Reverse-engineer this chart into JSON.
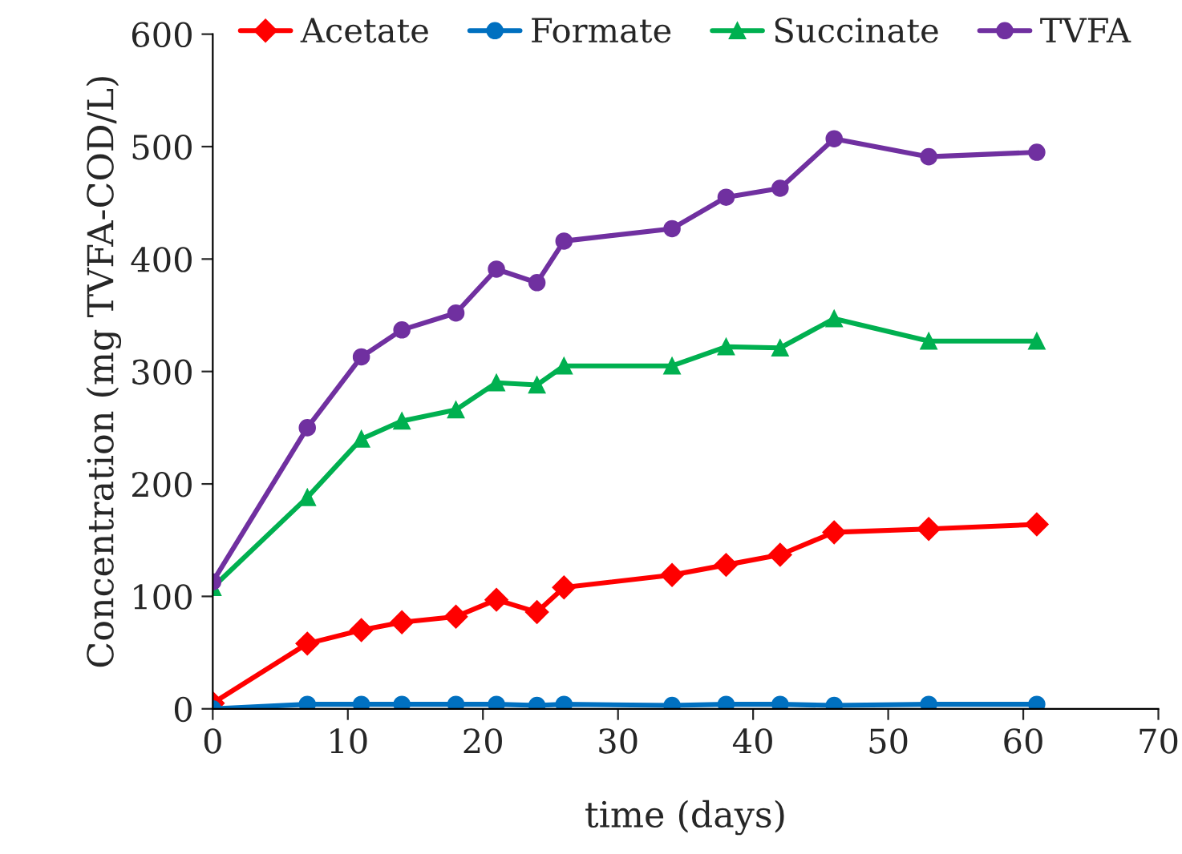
{
  "chart_data": {
    "type": "line",
    "xlabel": "time (days)",
    "ylabel": "Concentration (mg TVFA-COD/L)",
    "x": [
      0,
      7,
      11,
      14,
      18,
      21,
      24,
      26,
      34,
      38,
      42,
      46,
      53,
      61
    ],
    "series": [
      {
        "name": "Acetate",
        "color": "#ff0000",
        "marker": "diamond",
        "values": [
          5,
          58,
          70,
          77,
          82,
          97,
          86,
          108,
          119,
          128,
          137,
          157,
          160,
          164
        ]
      },
      {
        "name": "Formate",
        "color": "#0070c0",
        "marker": "circle",
        "values": [
          0,
          4,
          4,
          4,
          4,
          4,
          3,
          4,
          3,
          4,
          4,
          3,
          4,
          4
        ]
      },
      {
        "name": "Succinate",
        "color": "#00b050",
        "marker": "triangle",
        "values": [
          108,
          188,
          240,
          256,
          266,
          290,
          288,
          305,
          305,
          322,
          321,
          347,
          327,
          327
        ]
      },
      {
        "name": "TVFA",
        "color": "#7030a0",
        "marker": "circle",
        "values": [
          113,
          250,
          313,
          337,
          352,
          391,
          379,
          416,
          427,
          455,
          463,
          507,
          491,
          495
        ]
      }
    ],
    "xlim": [
      0,
      70
    ],
    "xticks": [
      0,
      10,
      20,
      30,
      40,
      50,
      60,
      70
    ],
    "ylim": [
      0,
      600
    ],
    "yticks": [
      0,
      100,
      200,
      300,
      400,
      500,
      600
    ],
    "grid": false,
    "legend": "top",
    "line_style": "solid"
  }
}
